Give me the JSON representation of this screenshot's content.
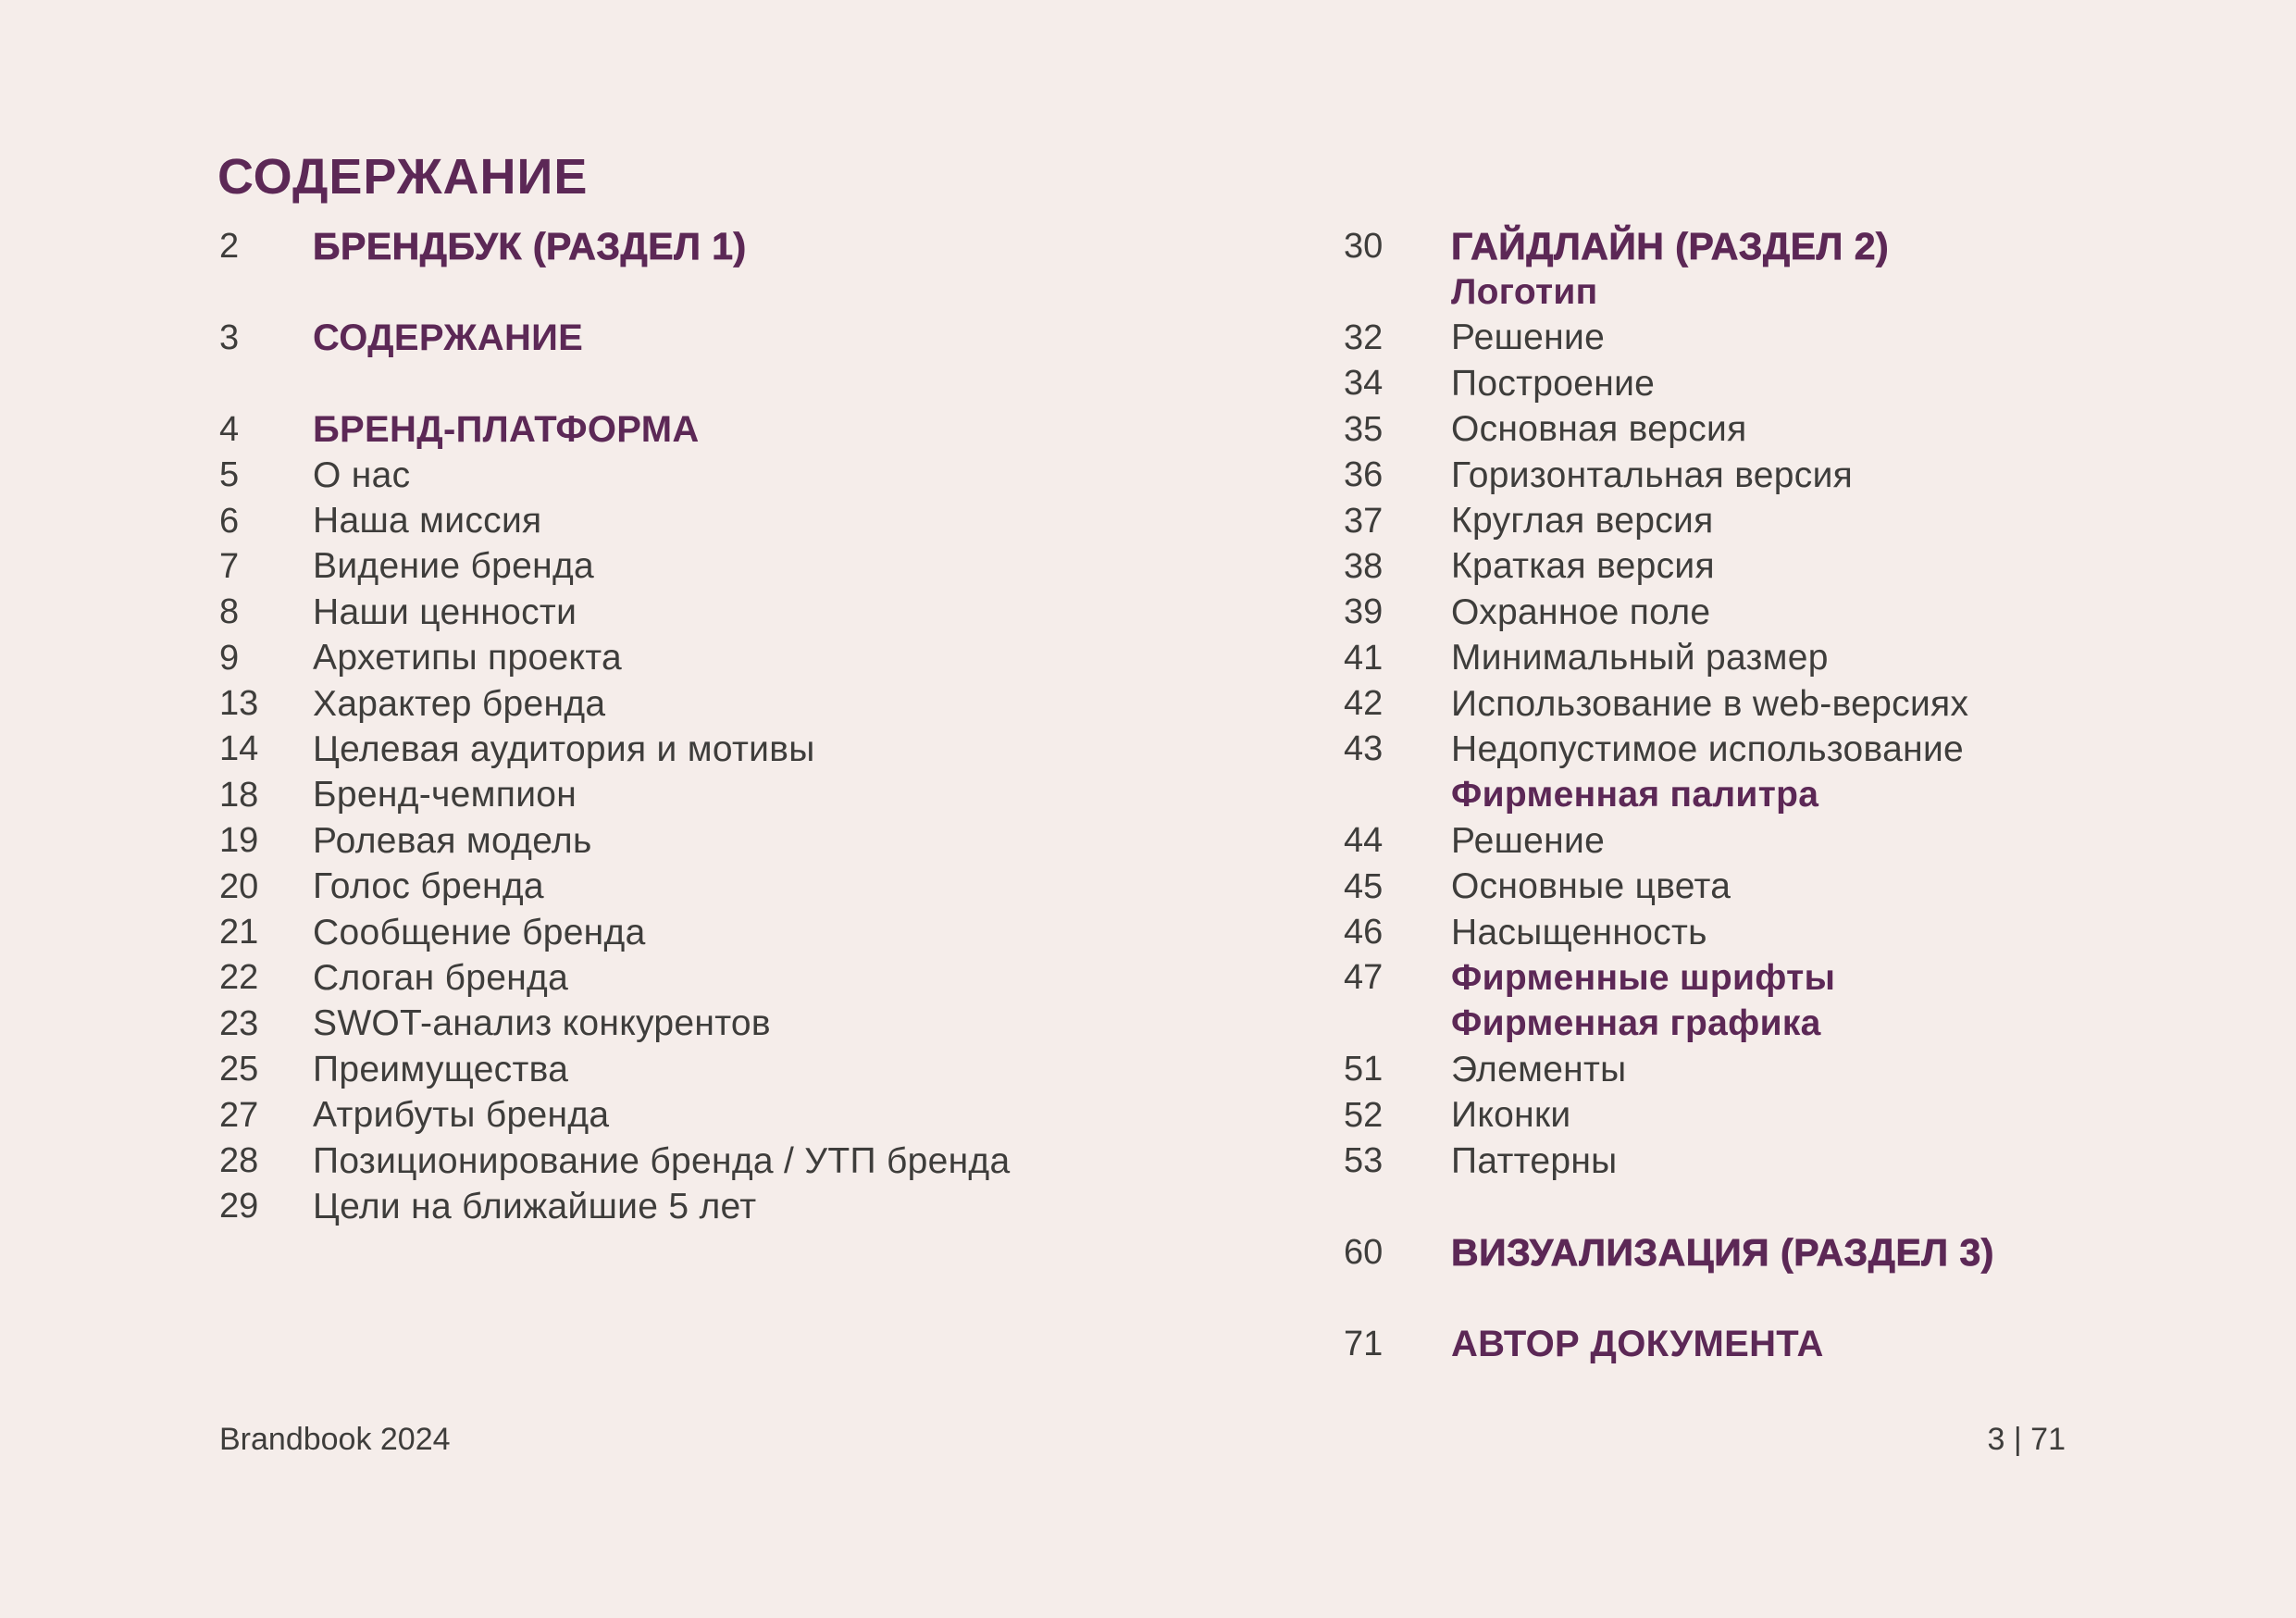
{
  "colors": {
    "background": "#f5edea",
    "purple": "#5c2856",
    "text": "#3e3d3b"
  },
  "page": {
    "title": "СОДЕРЖАНИЕ",
    "footer_left": "Brandbook 2024",
    "footer_right": "3 | 71"
  },
  "left_column": {
    "rows": [
      {
        "num": "2",
        "label": "БРЕНДБУК (РАЗДЕЛ 1)",
        "style": "section-bold"
      },
      {
        "style": "blank"
      },
      {
        "num": "3",
        "label": "СОДЕРЖАНИЕ",
        "style": "section"
      },
      {
        "style": "blank"
      },
      {
        "num": "4",
        "label": "БРЕНД-ПЛАТФОРМА",
        "style": "section"
      },
      {
        "num": "5",
        "label": "О нас",
        "style": "item"
      },
      {
        "num": "6",
        "label": "Наша миссия",
        "style": "item"
      },
      {
        "num": "7",
        "label": "Видение бренда",
        "style": "item"
      },
      {
        "num": "8",
        "label": "Наши ценности",
        "style": "item"
      },
      {
        "num": "9",
        "label": "Архетипы проекта",
        "style": "item"
      },
      {
        "num": "13",
        "label": "Характер бренда",
        "style": "item"
      },
      {
        "num": "14",
        "label": "Целевая аудитория и мотивы",
        "style": "item"
      },
      {
        "num": "18",
        "label": "Бренд-чемпион",
        "style": "item"
      },
      {
        "num": "19",
        "label": "Ролевая модель",
        "style": "item"
      },
      {
        "num": "20",
        "label": "Голос бренда",
        "style": "item"
      },
      {
        "num": "21",
        "label": "Сообщение бренда",
        "style": "item"
      },
      {
        "num": "22",
        "label": "Слоган бренда",
        "style": "item"
      },
      {
        "num": "23",
        "label": "SWOT-анализ конкурентов",
        "style": "item"
      },
      {
        "num": "25",
        "label": "Преимущества",
        "style": "item"
      },
      {
        "num": "27",
        "label": "Атрибуты бренда",
        "style": "item"
      },
      {
        "num": "28",
        "label": "Позиционирование бренда / УТП бренда",
        "style": "item"
      },
      {
        "num": "29",
        "label": "Цели на ближайшие 5 лет",
        "style": "item"
      }
    ]
  },
  "right_column": {
    "rows": [
      {
        "num": "30",
        "label": "ГАЙДЛАЙН (РАЗДЕЛ 2)",
        "style": "section-bold"
      },
      {
        "label": "Логотип",
        "style": "subheader"
      },
      {
        "num": "32",
        "label": "Решение",
        "style": "item"
      },
      {
        "num": "34",
        "label": "Построение",
        "style": "item"
      },
      {
        "num": "35",
        "label": "Основная версия",
        "style": "item"
      },
      {
        "num": "36",
        "label": "Горизонтальная версия",
        "style": "item"
      },
      {
        "num": "37",
        "label": "Круглая версия",
        "style": "item"
      },
      {
        "num": "38",
        "label": "Краткая версия",
        "style": "item"
      },
      {
        "num": "39",
        "label": "Охранное поле",
        "style": "item"
      },
      {
        "num": "41",
        "label": "Минимальный размер",
        "style": "item"
      },
      {
        "num": "42",
        "label": "Использование в web-версиях",
        "style": "item"
      },
      {
        "num": "43",
        "label": "Недопустимое использование",
        "style": "item"
      },
      {
        "label": "Фирменная палитра",
        "style": "subheader"
      },
      {
        "num": "44",
        "label": "Решение",
        "style": "item"
      },
      {
        "num": "45",
        "label": "Основные цвета",
        "style": "item"
      },
      {
        "num": "46",
        "label": "Насыщенность",
        "style": "item"
      },
      {
        "num": "47",
        "label": "Фирменные шрифты",
        "style": "subheader"
      },
      {
        "label": "Фирменная графика",
        "style": "subheader"
      },
      {
        "num": "51",
        "label": "Элементы",
        "style": "item"
      },
      {
        "num": "52",
        "label": "Иконки",
        "style": "item"
      },
      {
        "num": "53",
        "label": "Паттерны",
        "style": "item"
      },
      {
        "style": "blank"
      },
      {
        "num": "60",
        "label": "ВИЗУАЛИЗАЦИЯ (РАЗДЕЛ 3)",
        "style": "section-bold"
      },
      {
        "style": "blank"
      },
      {
        "num": "71",
        "label": "АВТОР ДОКУМЕНТА",
        "style": "section"
      }
    ]
  }
}
